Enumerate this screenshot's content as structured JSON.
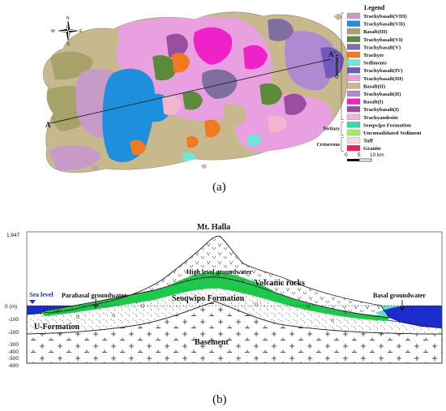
{
  "panel_a": {
    "caption": "(a)",
    "section_labels": {
      "start": "A",
      "end": "A'"
    },
    "compass": {
      "n": "N",
      "s": "S",
      "e": "E",
      "w": "W"
    },
    "legend": {
      "title": "Legend",
      "items": [
        {
          "label": "Trachybasalt(VIII)",
          "color": "#c89ac8"
        },
        {
          "label": "Trachybasalt(VII)",
          "color": "#1e8fdc"
        },
        {
          "label": "Basalt(III)",
          "color": "#a6a26a"
        },
        {
          "label": "Trachybasalt(VI)",
          "color": "#5b8b3a"
        },
        {
          "label": "Trachybasalt(V)",
          "color": "#7e6fa0"
        },
        {
          "label": "Trachyte",
          "color": "#f07a22"
        },
        {
          "label": "Sediments",
          "color": "#6ee8d8"
        },
        {
          "label": "Trachybasalt(IV)",
          "color": "#6f5ac0"
        },
        {
          "label": "Trachybasalt(III)",
          "color": "#e8a0e0"
        },
        {
          "label": "Basalt(II)",
          "color": "#c8b88e"
        },
        {
          "label": "Trachybasalt(II)",
          "color": "#b08ad0"
        },
        {
          "label": "Basalt(I)",
          "color": "#ee22c8"
        },
        {
          "label": "Trachybasalt(I)",
          "color": "#9a4ea0"
        },
        {
          "label": "Trachyandesite",
          "color": "#f2b6d0"
        },
        {
          "label": "Seoqwipo Formation",
          "color": "#38d8b0"
        },
        {
          "label": "Unconsolidated Sediment",
          "color": "#a6e86a"
        },
        {
          "label": "Tuff",
          "color": "#f4d8e0"
        },
        {
          "label": "Granite",
          "color": "#ee2060"
        }
      ],
      "periods": [
        {
          "label": "Quaternary",
          "from": 0,
          "to": 13
        },
        {
          "label": "Tertiary",
          "from": 14,
          "to": 15
        },
        {
          "label": "Cretaceous",
          "from": 16,
          "to": 17
        }
      ]
    },
    "scale_bar": {
      "labels": [
        "0",
        "5",
        "10 km"
      ]
    }
  },
  "panel_b": {
    "caption": "(b)",
    "y_axis": {
      "unit_label": "0 (m)",
      "ticks": [
        "1,947",
        "-100",
        "-200",
        "-300",
        "-400",
        "-500",
        "-600"
      ]
    },
    "labels": {
      "peak": "Mt. Halla",
      "high_level": "High level groundwater",
      "volcanic": "Volcanic rocks",
      "sea_level": "Sea level",
      "parabasal": "Parabasal groundwater",
      "seoqwipo": "Seoqwipo Formation",
      "basal_gw": "Basal groundwater",
      "u_formation": "U-Formation",
      "basement": "Basement"
    },
    "colors": {
      "sea": "#1a2ccc",
      "groundwater": "#1ec84a",
      "basal_gw": "#52e0d4"
    }
  }
}
